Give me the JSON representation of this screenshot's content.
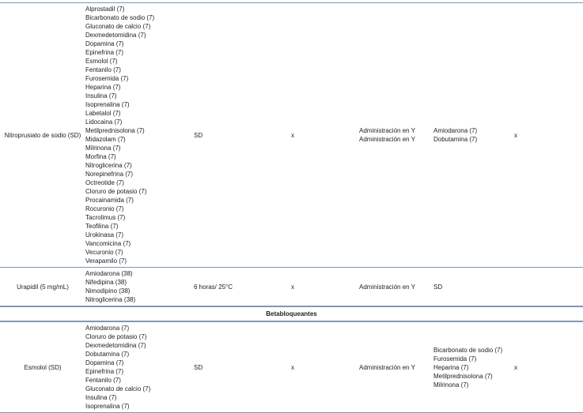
{
  "table": {
    "rows": [
      {
        "name": "Nitroprusiato de sodio (SD)",
        "compatible": [
          "Alprostadil (7)",
          "Bicarbonato de sodio (7)",
          "Gluconato de calcio (7)",
          "Dexmedetomidina (7)",
          "Dopamina (7)",
          "Epinefrina (7)",
          "Esmolol (7)",
          "Fentanilo (7)",
          "Furosemida (7)",
          "Heparina (7)",
          "Insulina (7)",
          "Isoprenalina (7)",
          "Labetalol (7)",
          "Lidocaina (7)",
          "Metilprednisolona (7)",
          "Midazolam (7)",
          "Milrinona (7)",
          "Morfina (7)",
          "Nitroglicerina (7)",
          "Norepinefrina (7)",
          "Octreotide  (7)",
          "Cloruro de potasio (7)",
          "Procainamida (7)",
          "Rocuronio (7)",
          "Tacrolimus (7)",
          "Teofilina (7)",
          "Urokinasa (7)",
          "Vancomicina (7)",
          "Vecuronio (7)",
          "Verapamilo (7)"
        ],
        "stability": "SD",
        "mark": "x",
        "administration": [
          "Administración en Y",
          "Administración en Y"
        ],
        "incompatible": [
          "Amiodarona (7)",
          "Dobutamina (7)"
        ],
        "mark2": "x"
      },
      {
        "name": "Urapidil (5 mg/mL)",
        "compatible": [
          "Amiodarona (38)",
          "Nifedipina (38)",
          "Nimodipino (38)",
          "Nitroglicerina (38)"
        ],
        "stability": "6 horas/ 25°C",
        "mark": "x",
        "administration": [
          "Administración en Y"
        ],
        "incompatible": [
          "SD"
        ]
      },
      {
        "section": "Betabloqueantes"
      },
      {
        "name": "Esmolol (SD)",
        "compatible": [
          "Amiodarona (7)",
          "Cloruro de potasio (7)",
          "Dexmedetomidina (7)",
          "Dobutamina (7)",
          "Dopamina (7)",
          "Epinefrina (7)",
          "Fentanilo (7)",
          "Gluconato de calcio (7)",
          "Insulina (7)",
          "Isoprenalina (7)"
        ],
        "stability": "SD",
        "mark": "x",
        "administration": [
          "Administración en Y"
        ],
        "incompatible": [
          "Bicarbonato de sodio (7)",
          "Furosemida (7)",
          "Heparina (7)",
          "Metilprednisolona (7)",
          "Milrinona (7)"
        ],
        "mark2": "x"
      }
    ]
  }
}
